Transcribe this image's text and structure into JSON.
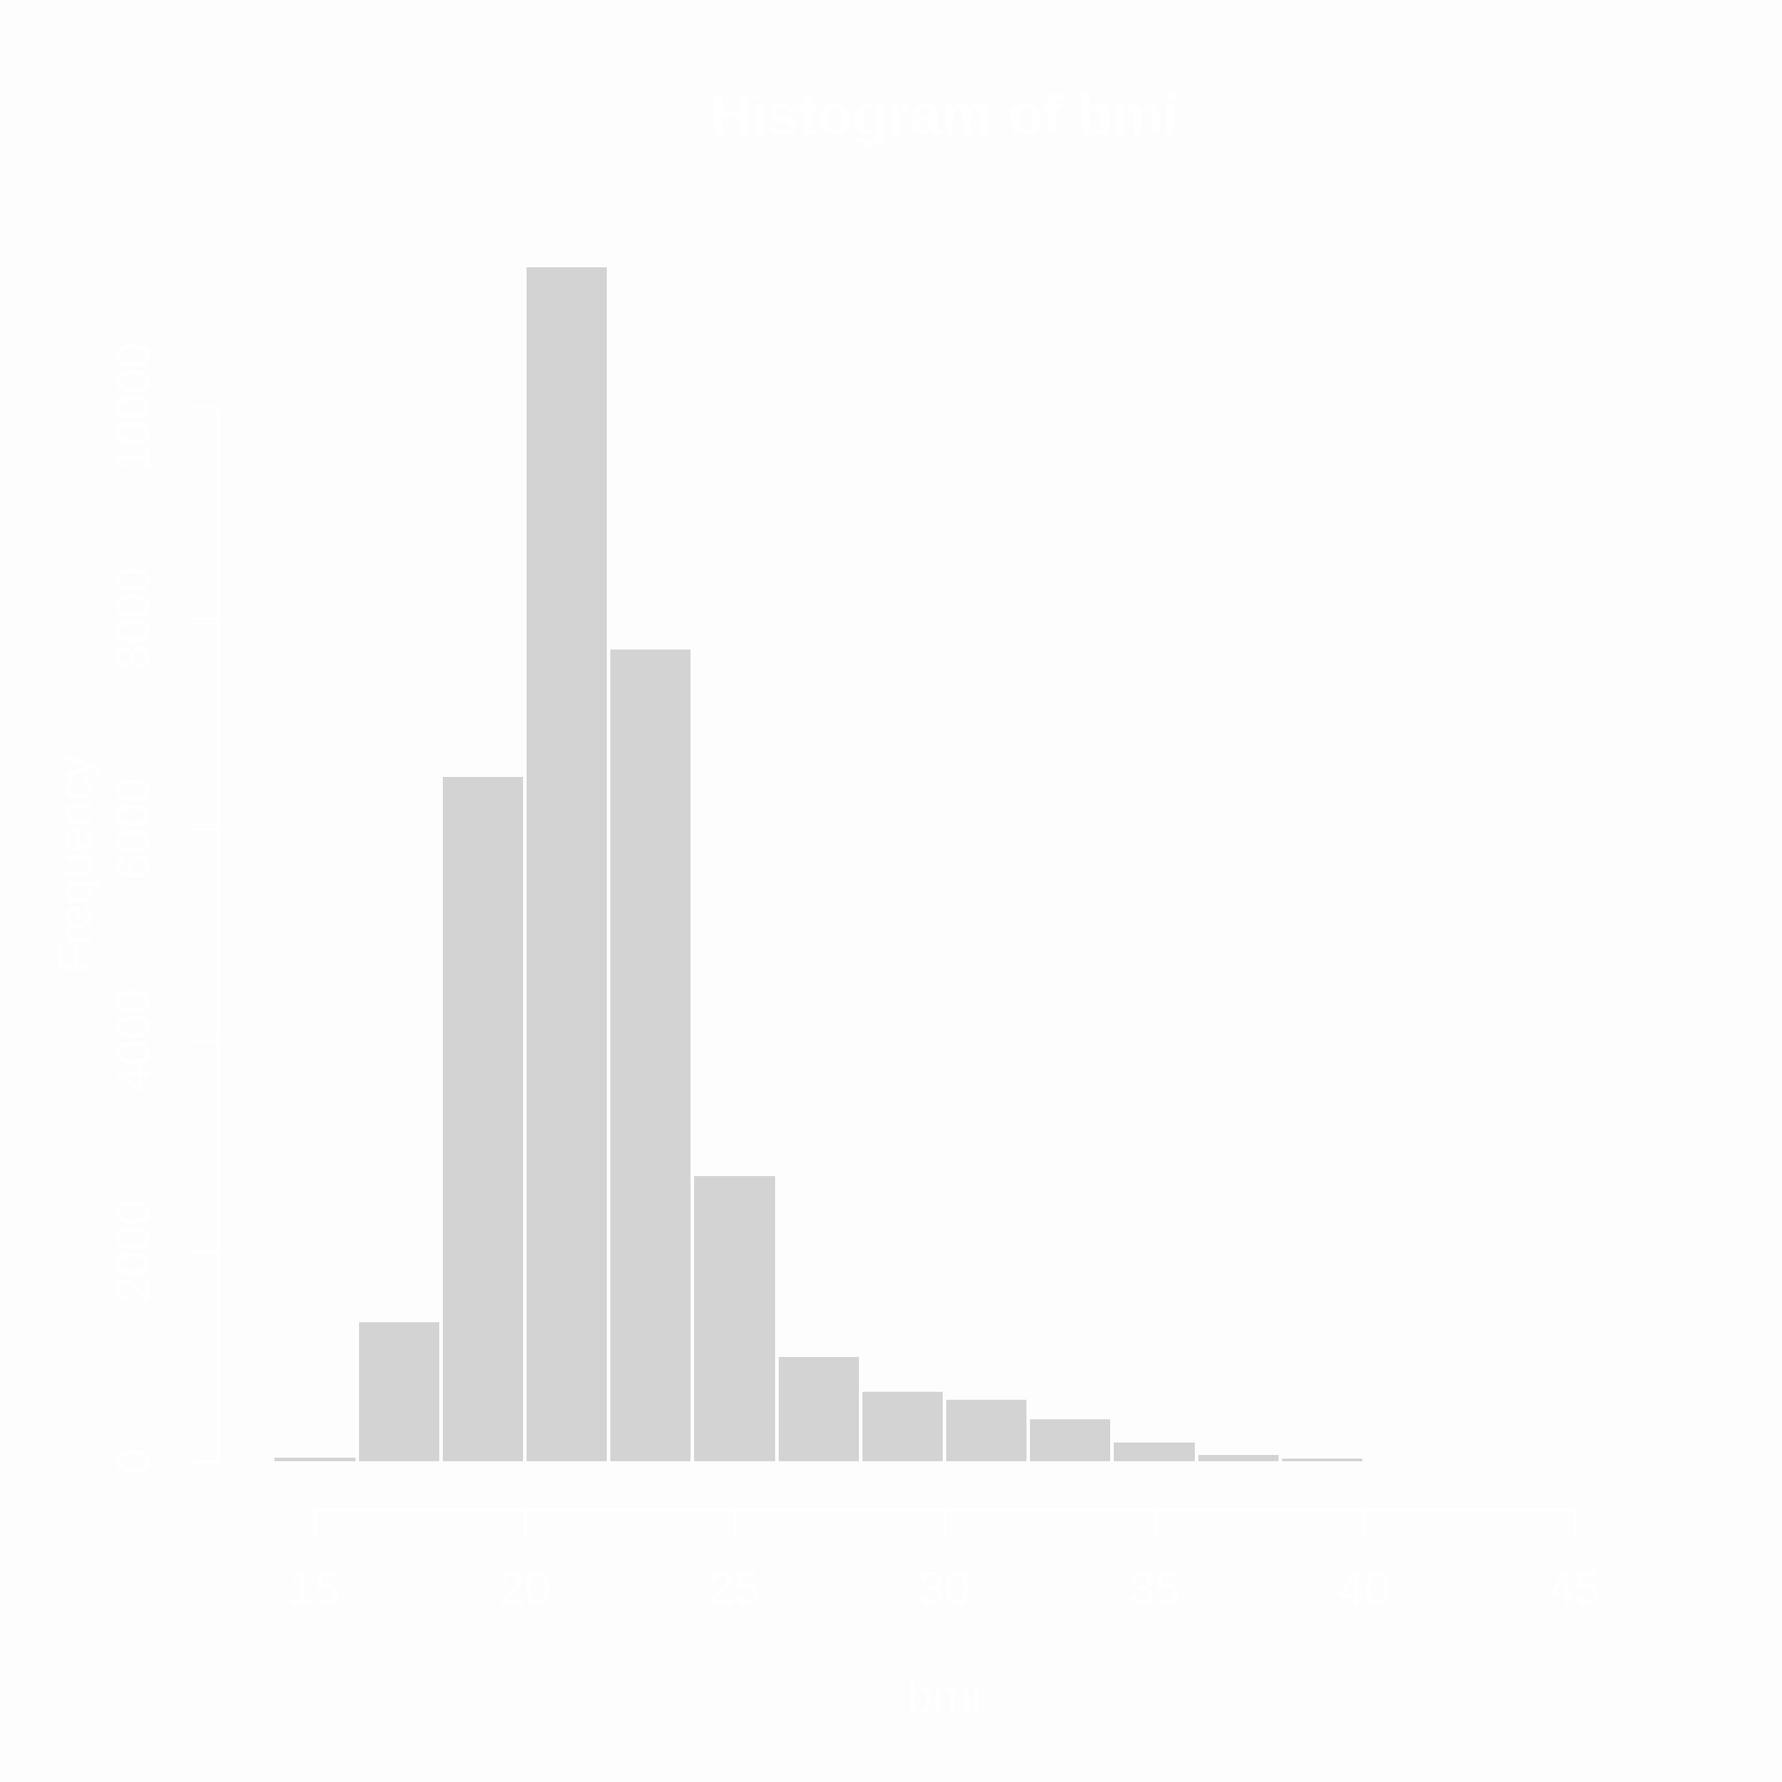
{
  "chart_data": {
    "type": "bar",
    "title": "Histogram of bmi",
    "xlabel": "bmi",
    "ylabel": "Frequency",
    "bin_start": 14,
    "bin_width": 2,
    "bin_edges": [
      14,
      16,
      18,
      20,
      22,
      24,
      26,
      28,
      30,
      32,
      34,
      36,
      38,
      40,
      42,
      44,
      46
    ],
    "counts": [
      40,
      1320,
      6490,
      11330,
      7700,
      2710,
      990,
      660,
      590,
      400,
      185,
      60,
      25,
      4,
      2,
      1
    ],
    "x_ticks": [
      15,
      20,
      25,
      30,
      35,
      40,
      45
    ],
    "y_ticks": [
      0,
      2000,
      4000,
      6000,
      8000,
      10000
    ],
    "xlim": [
      12.72,
      47.28
    ],
    "ylim": [
      -453,
      11784
    ],
    "grid": false,
    "legend": null,
    "colors": {
      "background": "#fdfdfd",
      "bar_fill": "#d3d3d3",
      "bar_border": "#ffffff",
      "axis": "#ffffff",
      "text": "#ffffff"
    }
  }
}
